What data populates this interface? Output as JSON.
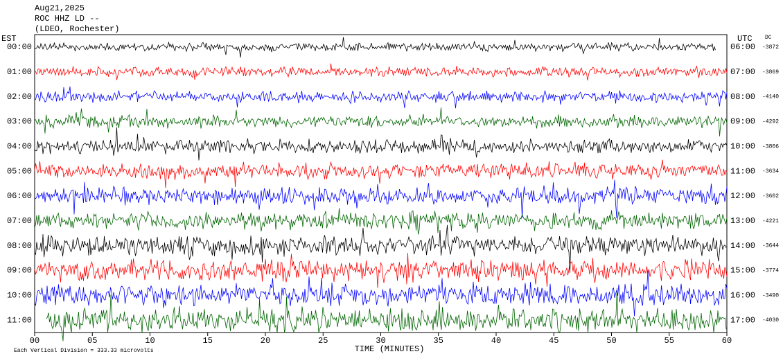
{
  "chart_data": {
    "type": "helicorder",
    "title_lines": [
      "Aug21,2025",
      "ROC HHZ LD --",
      "(LDEO, Rochester)"
    ],
    "left_axis_label": "EST",
    "right_axis_label": "UTC",
    "dc_label": "DC",
    "x_label": "TIME (MINUTES)",
    "footer": "Each Vertical Division =  333.33 microvolts",
    "xlim": [
      0,
      60
    ],
    "xticks": [
      {
        "value": 0,
        "label": "00"
      },
      {
        "value": 5,
        "label": "05"
      },
      10,
      15,
      20,
      25,
      30,
      35,
      40,
      45,
      50,
      55,
      60
    ],
    "rows": [
      {
        "est": "00:00",
        "utc": "06:00",
        "dc": -3872,
        "color": "#000000"
      },
      {
        "est": "01:00",
        "utc": "07:00",
        "dc": -3869,
        "color": "#ff0000"
      },
      {
        "est": "02:00",
        "utc": "08:00",
        "dc": -4140,
        "color": "#0000ff"
      },
      {
        "est": "03:00",
        "utc": "09:00",
        "dc": -4292,
        "color": "#006400"
      },
      {
        "est": "04:00",
        "utc": "10:00",
        "dc": -3806,
        "color": "#000000"
      },
      {
        "est": "05:00",
        "utc": "11:00",
        "dc": -3634,
        "color": "#ff0000"
      },
      {
        "est": "06:00",
        "utc": "12:00",
        "dc": -3602,
        "color": "#0000ff"
      },
      {
        "est": "07:00",
        "utc": "13:00",
        "dc": -4221,
        "color": "#006400"
      },
      {
        "est": "08:00",
        "utc": "14:00",
        "dc": -3644,
        "color": "#000000"
      },
      {
        "est": "09:00",
        "utc": "15:00",
        "dc": -3774,
        "color": "#ff0000"
      },
      {
        "est": "10:00",
        "utc": "16:00",
        "dc": -3490,
        "color": "#0000ff"
      },
      {
        "est": "11:00",
        "utc": "17:00",
        "dc": -4030,
        "color": "#006400"
      }
    ]
  }
}
